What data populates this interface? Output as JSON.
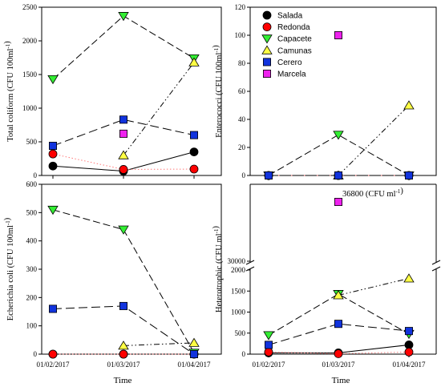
{
  "chart_data": [
    {
      "type": "line",
      "panel": "top-left",
      "ylabel": "Total coliform (CFU 100ml-1)",
      "ylim": [
        0,
        2500
      ],
      "yticks": [
        0,
        500,
        1000,
        1500,
        2000,
        2500
      ],
      "x": [
        "01/02/2017",
        "01/03/2017",
        "01/04/2017"
      ],
      "series": [
        {
          "name": "Salada",
          "values": [
            140,
            65,
            350
          ]
        },
        {
          "name": "Redonda",
          "values": [
            320,
            90,
            95
          ]
        },
        {
          "name": "Capacete",
          "values": [
            1430,
            2370,
            1740
          ]
        },
        {
          "name": "Camunas",
          "values": [
            null,
            300,
            1680
          ]
        },
        {
          "name": "Cerero",
          "values": [
            440,
            830,
            600
          ]
        },
        {
          "name": "Marcela",
          "values": [
            null,
            620,
            null
          ]
        }
      ]
    },
    {
      "type": "line",
      "panel": "top-right",
      "ylabel": "Enterococci (CFU 100ml-1)",
      "ylim": [
        0,
        120
      ],
      "yticks": [
        0,
        20,
        40,
        60,
        80,
        100,
        120
      ],
      "x": [
        "01/02/2017",
        "01/03/2017",
        "01/04/2017"
      ],
      "series": [
        {
          "name": "Salada",
          "values": [
            0,
            0,
            0
          ]
        },
        {
          "name": "Redonda",
          "values": [
            0,
            0,
            0
          ]
        },
        {
          "name": "Capacete",
          "values": [
            0,
            29,
            0
          ]
        },
        {
          "name": "Camunas",
          "values": [
            null,
            0,
            50
          ]
        },
        {
          "name": "Cerero",
          "values": [
            0,
            0,
            0
          ]
        },
        {
          "name": "Marcela",
          "values": [
            null,
            100,
            null
          ]
        }
      ],
      "legend": "top-left"
    },
    {
      "type": "line",
      "panel": "bottom-left",
      "ylabel": "Echerichia coli (CFU 100ml-1)",
      "ylim": [
        0,
        600
      ],
      "yticks": [
        0,
        100,
        200,
        300,
        400,
        500,
        600
      ],
      "x": [
        "01/02/2017",
        "01/03/2017",
        "01/04/2017"
      ],
      "xticks": [
        "01/02/2017",
        "01/03/2017",
        "01/04/2017"
      ],
      "xlabel": "Time",
      "series": [
        {
          "name": "Salada",
          "values": [
            0,
            0,
            0
          ]
        },
        {
          "name": "Redonda",
          "values": [
            0,
            0,
            0
          ]
        },
        {
          "name": "Capacete",
          "values": [
            510,
            440,
            5
          ]
        },
        {
          "name": "Camunas",
          "values": [
            null,
            30,
            40
          ]
        },
        {
          "name": "Cerero",
          "values": [
            160,
            170,
            0
          ]
        }
      ]
    },
    {
      "type": "line",
      "panel": "bottom-right",
      "ylabel": "Heterotrophic (CFU ml-1)",
      "ylim": [
        0,
        2000
      ],
      "axis_break": {
        "lower_max": 2000,
        "upper_tick": 30000
      },
      "yticks": [
        0,
        500,
        1000,
        1500,
        2000,
        30000
      ],
      "x": [
        "01/02/2017",
        "01/03/2017",
        "01/04/2017"
      ],
      "xticks": [
        "01/02/2017",
        "01/03/2017",
        "01/04/2017"
      ],
      "xlabel": "Time",
      "annotation": "36800 (CFU ml-1)",
      "series": [
        {
          "name": "Salada",
          "values": [
            30,
            30,
            220
          ]
        },
        {
          "name": "Redonda",
          "values": [
            50,
            10,
            50
          ]
        },
        {
          "name": "Capacete",
          "values": [
            450,
            1430,
            480
          ]
        },
        {
          "name": "Camunas",
          "values": [
            null,
            1400,
            1800
          ]
        },
        {
          "name": "Cerero",
          "values": [
            220,
            720,
            550
          ]
        },
        {
          "name": "Marcela",
          "values": [
            null,
            36800,
            null
          ]
        }
      ]
    }
  ],
  "styles": {
    "Salada": {
      "marker": "circle",
      "fill": "#000000",
      "line": "#000000",
      "dash": ""
    },
    "Redonda": {
      "marker": "circle",
      "fill": "#ff0000",
      "line": "#ff7777",
      "dash": "1.5,2.5"
    },
    "Capacete": {
      "marker": "triangle-down",
      "fill": "#33ee33",
      "line": "#000000",
      "dash": "9,4"
    },
    "Camunas": {
      "marker": "triangle-up",
      "fill": "#ffff44",
      "line": "#000000",
      "dash": "7,3,1.5,3,1.5,3"
    },
    "Cerero": {
      "marker": "square",
      "fill": "#1133dd",
      "line": "#000000",
      "dash": "11,5"
    },
    "Marcela": {
      "marker": "square",
      "fill": "#ee22ee",
      "line": "#000000",
      "dash": ""
    }
  }
}
